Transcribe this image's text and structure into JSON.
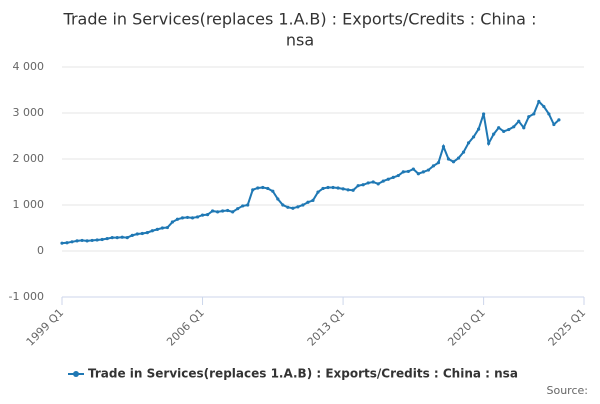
{
  "chart_data": {
    "type": "line",
    "title": [
      "Trade in Services(replaces 1.A.B) : Exports/Credits : China :",
      "nsa"
    ],
    "categories": [
      "1999 Q1",
      null,
      null,
      null,
      null,
      null,
      null,
      null,
      null,
      null,
      null,
      null,
      null,
      null,
      null,
      null,
      null,
      null,
      null,
      null,
      null,
      null,
      null,
      null,
      null,
      null,
      null,
      null,
      "2006 Q1",
      null,
      null,
      null,
      null,
      null,
      null,
      null,
      null,
      null,
      null,
      null,
      null,
      null,
      null,
      null,
      null,
      null,
      null,
      null,
      null,
      null,
      null,
      null,
      null,
      null,
      null,
      null,
      "2013 Q1",
      null,
      null,
      null,
      null,
      null,
      null,
      null,
      null,
      null,
      null,
      null,
      null,
      null,
      null,
      null,
      null,
      null,
      null,
      null,
      null,
      null,
      null,
      null,
      null,
      null,
      null,
      null,
      "2020 Q1",
      null,
      null,
      null,
      null,
      null,
      null,
      null,
      null,
      null,
      null,
      null,
      null,
      null,
      null,
      null,
      null,
      null,
      null,
      null,
      "2025 Q1"
    ],
    "series": [
      {
        "name": "Trade in Services(replaces 1.A.B) : Exports/Credits : China : nsa",
        "color": "#1f78b4",
        "values": [
          170,
          180,
          200,
          220,
          230,
          220,
          230,
          240,
          250,
          270,
          290,
          290,
          300,
          290,
          340,
          370,
          380,
          400,
          440,
          470,
          500,
          510,
          630,
          690,
          720,
          730,
          720,
          740,
          780,
          790,
          870,
          850,
          870,
          880,
          850,
          920,
          980,
          1000,
          1330,
          1370,
          1380,
          1360,
          1300,
          1130,
          1000,
          950,
          930,
          960,
          1000,
          1060,
          1100,
          1280,
          1360,
          1380,
          1380,
          1370,
          1350,
          1330,
          1320,
          1420,
          1440,
          1480,
          1500,
          1460,
          1520,
          1560,
          1600,
          1640,
          1720,
          1730,
          1780,
          1680,
          1720,
          1760,
          1850,
          1920,
          2270,
          2000,
          1940,
          2020,
          2150,
          2350,
          2480,
          2650,
          2980,
          2340,
          2540,
          2680,
          2600,
          2640,
          2700,
          2820,
          2680,
          2920,
          2980,
          3250,
          3140,
          2980,
          2750,
          2850,
          null,
          null,
          null,
          null,
          null
        ]
      }
    ],
    "ylim": [
      -1000,
      4000
    ],
    "yticks": [
      {
        "value": -1000,
        "label": "-1 000"
      },
      0,
      {
        "value": 1000,
        "label": "1 000"
      },
      {
        "value": 2000,
        "label": "2 000"
      },
      {
        "value": 3000,
        "label": "3 000"
      },
      {
        "value": 4000,
        "label": "4 000"
      }
    ],
    "grid": true,
    "legend": "bottom",
    "source": "Source:"
  }
}
